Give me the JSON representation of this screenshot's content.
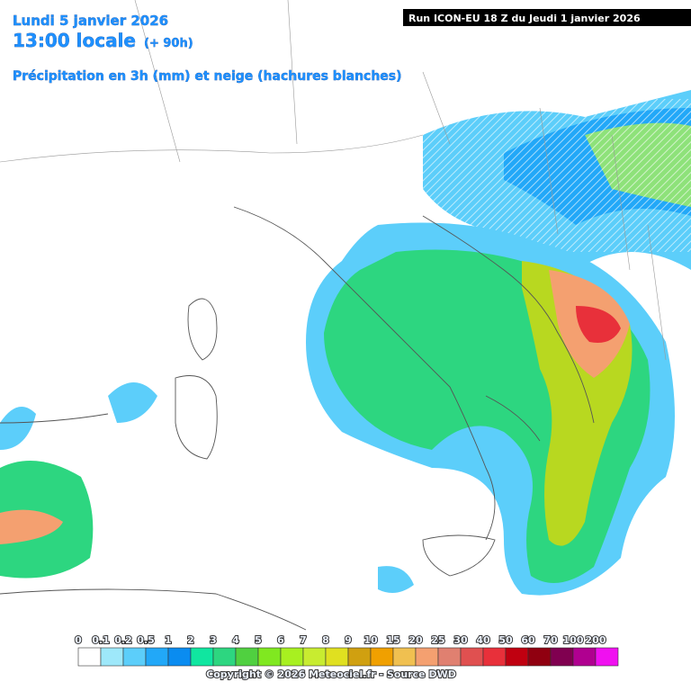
{
  "header": {
    "date": "Lundi 5 janvier 2026",
    "time": "13:00 locale",
    "lead_time": "(+ 90h)",
    "subtitle": "Précipitation en 3h (mm) et neige (hachures blanches)",
    "run": "Run ICON-EU 18 Z du Jeudi 1 janvier 2026"
  },
  "legend": {
    "labels": [
      0,
      0.1,
      0.2,
      0.5,
      1,
      2,
      3,
      4,
      5,
      6,
      7,
      8,
      9,
      10,
      15,
      20,
      25,
      30,
      40,
      50,
      60,
      70,
      100,
      200
    ],
    "colors": [
      "#ffffff",
      "#9ee8fa",
      "#5ccefa",
      "#22a8f8",
      "#0a8cf0",
      "#10e6a0",
      "#2dd680",
      "#50d040",
      "#80e820",
      "#a8f020",
      "#c8ec30",
      "#e0e020",
      "#d0a010",
      "#f0a000",
      "#f0c050",
      "#f4a070",
      "#e08070",
      "#e05050",
      "#e8303a",
      "#c00010",
      "#900010",
      "#800050",
      "#b00090",
      "#f010f0"
    ]
  },
  "footer": {
    "copyright": "Copyright © 2026 Meteociel.fr - Source DWD"
  }
}
